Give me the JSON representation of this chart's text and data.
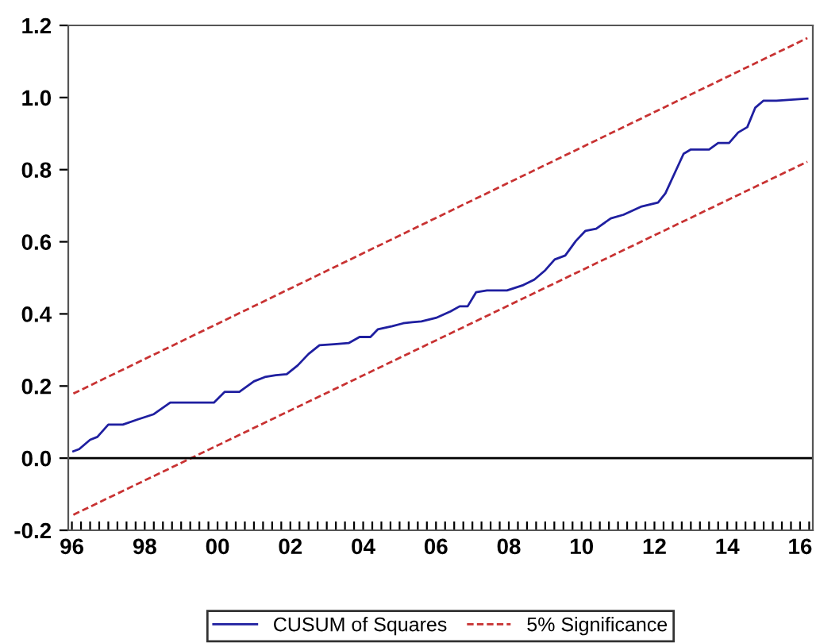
{
  "chart_data": {
    "type": "line",
    "xlim": [
      1995.9,
      2016.35
    ],
    "ylim": [
      -0.2,
      1.2
    ],
    "yticks": [
      {
        "value": -0.2,
        "label": "-0.2"
      },
      {
        "value": 0,
        "label": "0.0"
      },
      {
        "value": 0.2,
        "label": "0.2"
      },
      {
        "value": 0.4,
        "label": "0.4"
      },
      {
        "value": 0.6,
        "label": "0.6"
      },
      {
        "value": 0.8,
        "label": "0.8"
      },
      {
        "value": 1.0,
        "label": "1.0"
      },
      {
        "value": 1.2,
        "label": "1.2"
      }
    ],
    "xticks": [
      {
        "value": 1996,
        "label": "96"
      },
      {
        "value": 1996.25,
        "label": null
      },
      {
        "value": 1996.5,
        "label": null
      },
      {
        "value": 1996.75,
        "label": null
      },
      {
        "value": 1997,
        "label": null
      },
      {
        "value": 1997.25,
        "label": null
      },
      {
        "value": 1997.5,
        "label": null
      },
      {
        "value": 1997.75,
        "label": null
      },
      {
        "value": 1998,
        "label": "98"
      },
      {
        "value": 1998.25,
        "label": null
      },
      {
        "value": 1998.5,
        "label": null
      },
      {
        "value": 1998.75,
        "label": null
      },
      {
        "value": 1999,
        "label": null
      },
      {
        "value": 1999.25,
        "label": null
      },
      {
        "value": 1999.5,
        "label": null
      },
      {
        "value": 1999.75,
        "label": null
      },
      {
        "value": 2000,
        "label": "00"
      },
      {
        "value": 2000.25,
        "label": null
      },
      {
        "value": 2000.5,
        "label": null
      },
      {
        "value": 2000.75,
        "label": null
      },
      {
        "value": 2001,
        "label": null
      },
      {
        "value": 2001.25,
        "label": null
      },
      {
        "value": 2001.5,
        "label": null
      },
      {
        "value": 2001.75,
        "label": null
      },
      {
        "value": 2002,
        "label": "02"
      },
      {
        "value": 2002.25,
        "label": null
      },
      {
        "value": 2002.5,
        "label": null
      },
      {
        "value": 2002.75,
        "label": null
      },
      {
        "value": 2003,
        "label": null
      },
      {
        "value": 2003.25,
        "label": null
      },
      {
        "value": 2003.5,
        "label": null
      },
      {
        "value": 2003.75,
        "label": null
      },
      {
        "value": 2004,
        "label": "04"
      },
      {
        "value": 2004.25,
        "label": null
      },
      {
        "value": 2004.5,
        "label": null
      },
      {
        "value": 2004.75,
        "label": null
      },
      {
        "value": 2005,
        "label": null
      },
      {
        "value": 2005.25,
        "label": null
      },
      {
        "value": 2005.5,
        "label": null
      },
      {
        "value": 2005.75,
        "label": null
      },
      {
        "value": 2006,
        "label": "06"
      },
      {
        "value": 2006.25,
        "label": null
      },
      {
        "value": 2006.5,
        "label": null
      },
      {
        "value": 2006.75,
        "label": null
      },
      {
        "value": 2007,
        "label": null
      },
      {
        "value": 2007.25,
        "label": null
      },
      {
        "value": 2007.5,
        "label": null
      },
      {
        "value": 2007.75,
        "label": null
      },
      {
        "value": 2008,
        "label": "08"
      },
      {
        "value": 2008.25,
        "label": null
      },
      {
        "value": 2008.5,
        "label": null
      },
      {
        "value": 2008.75,
        "label": null
      },
      {
        "value": 2009,
        "label": null
      },
      {
        "value": 2009.25,
        "label": null
      },
      {
        "value": 2009.5,
        "label": null
      },
      {
        "value": 2009.75,
        "label": null
      },
      {
        "value": 2010,
        "label": "10"
      },
      {
        "value": 2010.25,
        "label": null
      },
      {
        "value": 2010.5,
        "label": null
      },
      {
        "value": 2010.75,
        "label": null
      },
      {
        "value": 2011,
        "label": null
      },
      {
        "value": 2011.25,
        "label": null
      },
      {
        "value": 2011.5,
        "label": null
      },
      {
        "value": 2011.75,
        "label": null
      },
      {
        "value": 2012,
        "label": "12"
      },
      {
        "value": 2012.25,
        "label": null
      },
      {
        "value": 2012.5,
        "label": null
      },
      {
        "value": 2012.75,
        "label": null
      },
      {
        "value": 2013,
        "label": null
      },
      {
        "value": 2013.25,
        "label": null
      },
      {
        "value": 2013.5,
        "label": null
      },
      {
        "value": 2013.75,
        "label": null
      },
      {
        "value": 2014,
        "label": "14"
      },
      {
        "value": 2014.25,
        "label": null
      },
      {
        "value": 2014.5,
        "label": null
      },
      {
        "value": 2014.75,
        "label": null
      },
      {
        "value": 2015,
        "label": null
      },
      {
        "value": 2015.25,
        "label": null
      },
      {
        "value": 2015.5,
        "label": null
      },
      {
        "value": 2015.75,
        "label": null
      },
      {
        "value": 2016,
        "label": "16"
      },
      {
        "value": 2016.25,
        "label": null
      }
    ],
    "grid": false,
    "legend": "bottom",
    "ref_lines": [
      {
        "axis": "y",
        "value": 0,
        "color": "#000000",
        "line_style": "solid"
      }
    ],
    "series": [
      {
        "name": "CUSUM of Squares",
        "color": "#1f1fa0",
        "line_style": "solid",
        "x": [
          1996.04,
          1996.2,
          1996.5,
          1996.7,
          1997.0,
          1997.4,
          1997.8,
          1998.25,
          1998.7,
          1999.9,
          2000.2,
          2000.6,
          2001.0,
          2001.3,
          2001.6,
          2001.9,
          2002.2,
          2002.5,
          2002.8,
          2003.2,
          2003.6,
          2003.9,
          2004.2,
          2004.4,
          2004.8,
          2005.1,
          2005.35,
          2005.6,
          2006.0,
          2006.4,
          2006.65,
          2006.87,
          2007.1,
          2007.4,
          2007.95,
          2008.4,
          2008.7,
          2009.0,
          2009.26,
          2009.55,
          2009.84,
          2010.1,
          2010.4,
          2010.8,
          2011.15,
          2011.65,
          2012.1,
          2012.3,
          2012.8,
          2013.0,
          2013.5,
          2013.75,
          2014.05,
          2014.3,
          2014.55,
          2014.77,
          2014.99,
          2015.35,
          2016.2
        ],
        "values": [
          0.019,
          0.025,
          0.051,
          0.059,
          0.093,
          0.093,
          0.107,
          0.122,
          0.154,
          0.154,
          0.184,
          0.184,
          0.213,
          0.225,
          0.23,
          0.233,
          0.257,
          0.289,
          0.313,
          0.316,
          0.319,
          0.336,
          0.336,
          0.357,
          0.366,
          0.374,
          0.377,
          0.379,
          0.389,
          0.407,
          0.421,
          0.421,
          0.46,
          0.465,
          0.465,
          0.48,
          0.495,
          0.521,
          0.551,
          0.562,
          0.602,
          0.63,
          0.636,
          0.665,
          0.675,
          0.698,
          0.709,
          0.734,
          0.844,
          0.856,
          0.856,
          0.874,
          0.874,
          0.903,
          0.918,
          0.972,
          0.991,
          0.991,
          0.997
        ]
      },
      {
        "name": "5% Significance",
        "color": "#c83232",
        "line_style": "dashed",
        "x": [
          1996.04,
          2016.2
        ],
        "values": [
          0.179,
          1.165
        ]
      },
      {
        "color": "#c83232",
        "line_style": "dashed",
        "x": [
          1996.04,
          2016.2
        ],
        "values": [
          -0.157,
          0.822
        ]
      }
    ]
  }
}
